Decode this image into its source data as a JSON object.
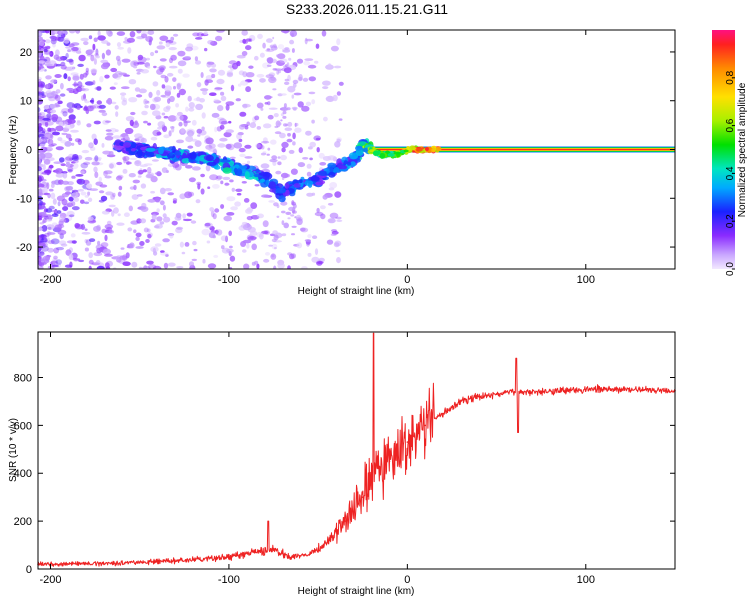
{
  "title": "S233.2026.011.15.21.G11",
  "colors": {
    "snr_line": "#ee2222",
    "frame": "#000000",
    "spectrogram_cold": "#7b1fff",
    "spectrogram_hot": "#ff1a1a"
  },
  "chart_data": [
    {
      "type": "heatmap",
      "title": "S233.2026.011.15.21.G11",
      "xlabel": "Height of straight line (km)",
      "ylabel": "Frequency (Hz)",
      "xlim": [
        -207,
        150
      ],
      "ylim": [
        -24.5,
        24.5
      ],
      "xticks": [
        -200,
        -100,
        0,
        100
      ],
      "yticks": [
        -20,
        -10,
        0,
        10,
        20
      ],
      "xtick_labels": [
        "-200",
        "-100",
        "0",
        "100"
      ],
      "ytick_labels": [
        "-20",
        "-10",
        "0",
        "10",
        "20"
      ],
      "colorbar": {
        "label": "Normalized spectral amplitude",
        "range": [
          0,
          1
        ],
        "ticks": [
          0.0,
          0.2,
          0.4,
          0.6,
          0.8
        ],
        "tick_labels": [
          "0.0",
          "0.2",
          "0.4",
          "0.6",
          "0.8"
        ]
      },
      "ridge": {
        "description": "Dominant frequency ridge vs height",
        "x": [
          -163,
          -150,
          -130,
          -110,
          -95,
          -80,
          -70,
          -60,
          -50,
          -40,
          -30,
          -25,
          -20,
          -15,
          -10,
          -5,
          0,
          10,
          50,
          100,
          150
        ],
        "freq": [
          1,
          0,
          -1,
          -2,
          -4,
          -6,
          -9,
          -7,
          -6,
          -4,
          -2,
          1,
          0,
          -1,
          -1,
          -1,
          0,
          0,
          0,
          0,
          0
        ],
        "amplitude": [
          0.25,
          0.3,
          0.35,
          0.4,
          0.4,
          0.35,
          0.35,
          0.3,
          0.3,
          0.3,
          0.35,
          0.55,
          0.7,
          0.6,
          0.65,
          0.6,
          0.9,
          0.95,
          0.95,
          0.95,
          0.95
        ]
      }
    },
    {
      "type": "line",
      "title": "",
      "xlabel": "Height of straight line (km)",
      "ylabel": "SNR (10 * v/v)",
      "xlim": [
        -207,
        150
      ],
      "ylim": [
        0,
        990
      ],
      "xticks": [
        -200,
        -100,
        0,
        100
      ],
      "yticks": [
        0,
        200,
        400,
        600,
        800
      ],
      "xtick_labels": [
        "-200",
        "-100",
        "0",
        "100"
      ],
      "ytick_labels": [
        "0",
        "200",
        "400",
        "600",
        "800"
      ],
      "series": [
        {
          "name": "SNR",
          "x": [
            -207,
            -180,
            -150,
            -120,
            -100,
            -85,
            -75,
            -65,
            -55,
            -45,
            -35,
            -25,
            -20,
            -10,
            0,
            10,
            20,
            30,
            40,
            50,
            60,
            70,
            80,
            100,
            120,
            150
          ],
          "y": [
            20,
            22,
            28,
            38,
            50,
            70,
            80,
            50,
            60,
            110,
            200,
            300,
            390,
            450,
            530,
            600,
            650,
            700,
            720,
            730,
            740,
            740,
            745,
            750,
            750,
            745
          ],
          "spikes": [
            {
              "x": -78,
              "y": 200
            },
            {
              "x": -19,
              "y": 985
            },
            {
              "x": 61,
              "y": 880
            },
            {
              "x": 62,
              "y": 570
            }
          ]
        }
      ]
    }
  ]
}
